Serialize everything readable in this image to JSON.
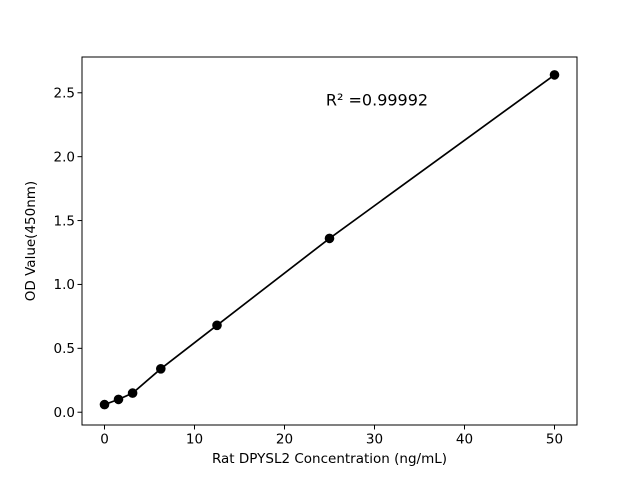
{
  "figure": {
    "background": "#ffffff"
  },
  "chart_data": {
    "type": "scatter",
    "title": "",
    "xlabel": "Rat DPYSL2 Concentration (ng/mL)",
    "ylabel": "OD Value(450nm)",
    "annotation": "R² =0.99992",
    "x": [
      0,
      1.56,
      3.12,
      6.25,
      12.5,
      25,
      50
    ],
    "y": [
      0.06,
      0.1,
      0.15,
      0.34,
      0.68,
      1.36,
      2.64
    ],
    "xlim": [
      -2.5,
      52.5
    ],
    "ylim": [
      -0.1,
      2.78
    ],
    "xticks": [
      0,
      10,
      20,
      30,
      40,
      50
    ],
    "xtick_labels": [
      "0",
      "10",
      "20",
      "30",
      "40",
      "50"
    ],
    "yticks": [
      0,
      0.5,
      1,
      1.5,
      2,
      2.5
    ],
    "ytick_labels": [
      "0.0",
      "0.5",
      "1.0",
      "1.5",
      "2.0",
      "2.5"
    ],
    "grid": false,
    "line": true,
    "marker": "circle",
    "line_color": "#000000",
    "marker_color": "#000000",
    "axis_color": "#000000"
  }
}
